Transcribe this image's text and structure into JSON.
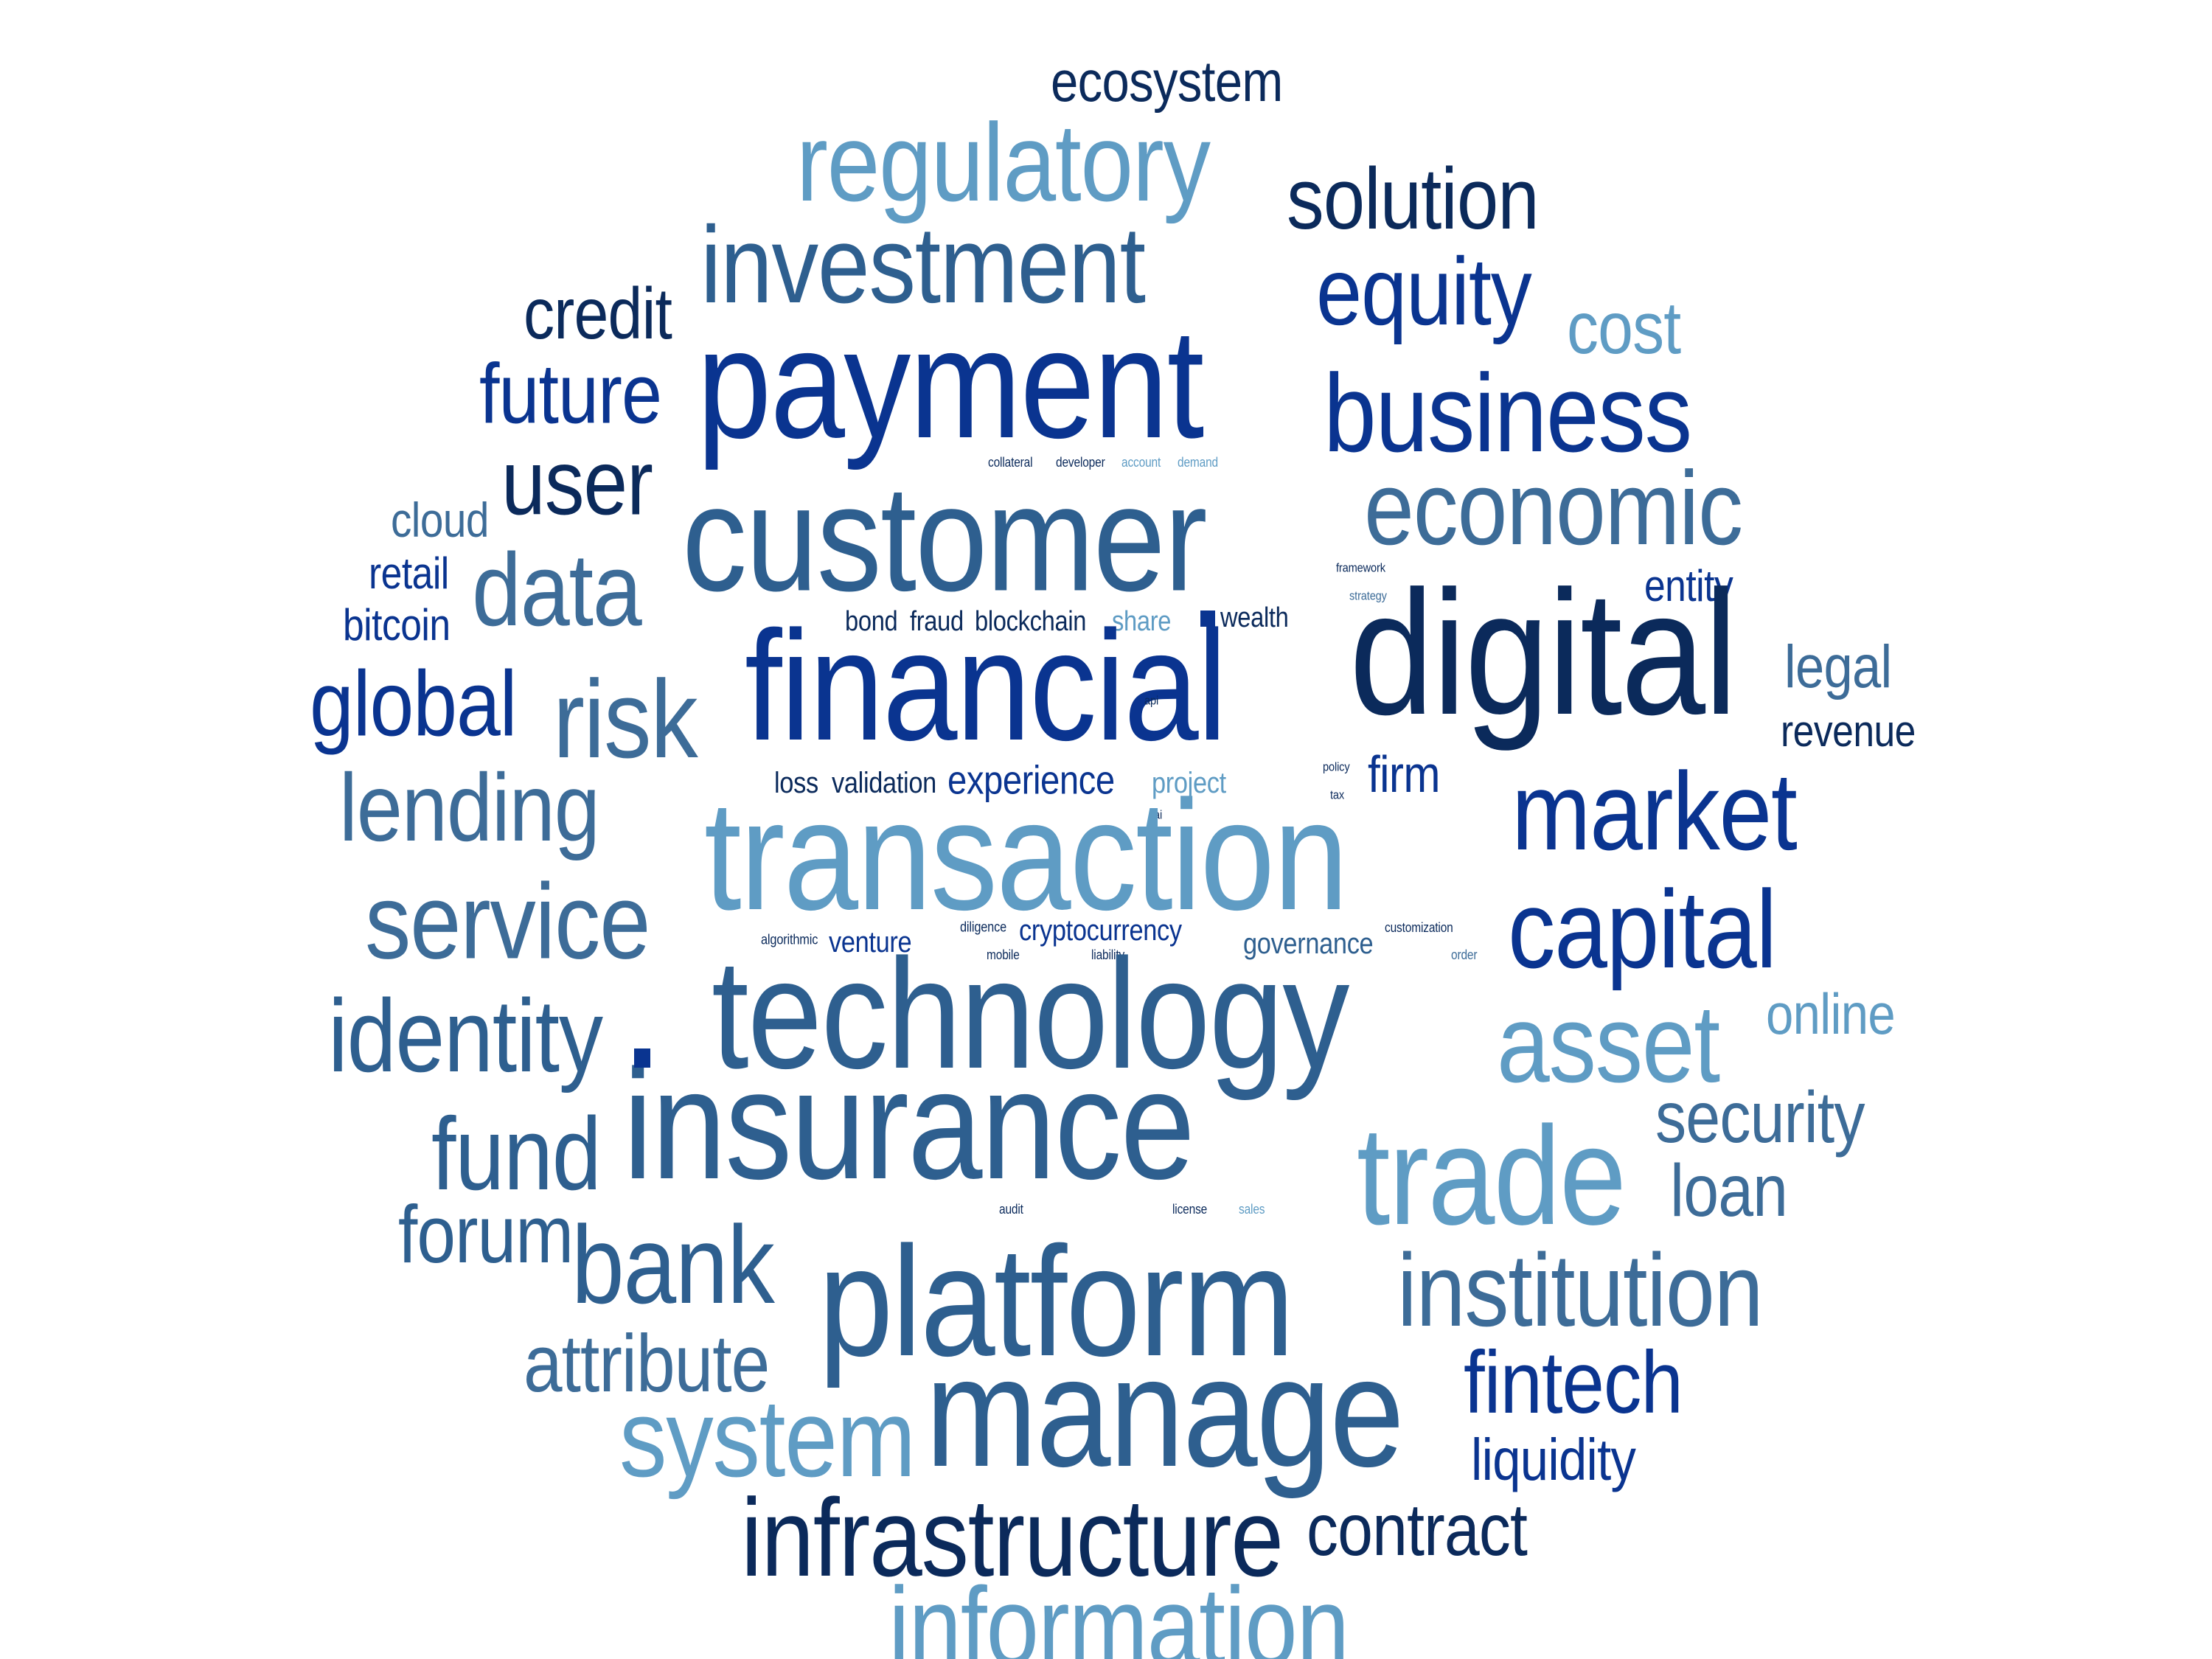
{
  "colors": {
    "background": "#ffffff",
    "palette": [
      "#0b2a5b",
      "#0a3490",
      "#2e5f8f",
      "#3d6c98",
      "#5f9cc4"
    ]
  },
  "words": [
    {
      "text": "ecosystem",
      "color": "#0b2a5b"
    },
    {
      "text": "regulatory",
      "color": "#5f9cc4"
    },
    {
      "text": "solution",
      "color": "#0b2a5b"
    },
    {
      "text": "investment",
      "color": "#2e5f8f"
    },
    {
      "text": "equity",
      "color": "#0a3490"
    },
    {
      "text": "credit",
      "color": "#0b2a5b"
    },
    {
      "text": "cost",
      "color": "#5f9cc4"
    },
    {
      "text": "payment",
      "color": "#0a3490"
    },
    {
      "text": "future",
      "color": "#0a3490"
    },
    {
      "text": "business",
      "color": "#0a3490"
    },
    {
      "text": "user",
      "color": "#0b2a5b"
    },
    {
      "text": "collateral",
      "color": "#0b2a5b"
    },
    {
      "text": "developer",
      "color": "#0b2a5b"
    },
    {
      "text": "account",
      "color": "#5f9cc4"
    },
    {
      "text": "demand",
      "color": "#5f9cc4"
    },
    {
      "text": "customer",
      "color": "#2e5f8f"
    },
    {
      "text": "economic",
      "color": "#3d6c98"
    },
    {
      "text": "cloud",
      "color": "#3d6c98"
    },
    {
      "text": "retail",
      "color": "#0a3490"
    },
    {
      "text": "data",
      "color": "#3d6c98"
    },
    {
      "text": "framework",
      "color": "#0b2a5b"
    },
    {
      "text": "strategy",
      "color": "#3d6c98"
    },
    {
      "text": "entity",
      "color": "#0a3490"
    },
    {
      "text": "bitcoin",
      "color": "#0a3490"
    },
    {
      "text": "bond",
      "color": "#0b2a5b"
    },
    {
      "text": "fraud",
      "color": "#0b2a5b"
    },
    {
      "text": "blockchain",
      "color": "#0b2a5b"
    },
    {
      "text": "share",
      "color": "#5f9cc4"
    },
    {
      "text": "wealth",
      "color": "#0b2a5b"
    },
    {
      "text": "digital",
      "color": "#0b2a5b"
    },
    {
      "text": "legal",
      "color": "#3d6c98"
    },
    {
      "text": "global",
      "color": "#0a3490"
    },
    {
      "text": "risk",
      "color": "#3d6c98"
    },
    {
      "text": "financial",
      "color": "#0a3490"
    },
    {
      "text": "api",
      "color": "#0b2a5b"
    },
    {
      "text": "revenue",
      "color": "#0b2a5b"
    },
    {
      "text": "lending",
      "color": "#3d6c98"
    },
    {
      "text": "loss",
      "color": "#0b2a5b"
    },
    {
      "text": "validation",
      "color": "#0b2a5b"
    },
    {
      "text": "experience",
      "color": "#0a3490"
    },
    {
      "text": "project",
      "color": "#5f9cc4"
    },
    {
      "text": "policy",
      "color": "#0b2a5b"
    },
    {
      "text": "tax",
      "color": "#0b2a5b"
    },
    {
      "text": "firm",
      "color": "#0a3490"
    },
    {
      "text": "market",
      "color": "#0a3490"
    },
    {
      "text": "ai",
      "color": "#0b2a5b"
    },
    {
      "text": "transaction",
      "color": "#5f9cc4"
    },
    {
      "text": "service",
      "color": "#3d6c98"
    },
    {
      "text": "capital",
      "color": "#0a3490"
    },
    {
      "text": "algorithmic",
      "color": "#0b2a5b"
    },
    {
      "text": "venture",
      "color": "#0a3490"
    },
    {
      "text": "diligence",
      "color": "#0b2a5b"
    },
    {
      "text": "cryptocurrency",
      "color": "#0a3490"
    },
    {
      "text": "governance",
      "color": "#2e5f8f"
    },
    {
      "text": "customization",
      "color": "#0b2a5b"
    },
    {
      "text": "mobile",
      "color": "#0b2a5b"
    },
    {
      "text": "liability",
      "color": "#0b2a5b"
    },
    {
      "text": "order",
      "color": "#3d6c98"
    },
    {
      "text": "technology",
      "color": "#2e5f8f"
    },
    {
      "text": "identity",
      "color": "#2e5f8f"
    },
    {
      "text": "online",
      "color": "#5f9cc4"
    },
    {
      "text": "asset",
      "color": "#5f9cc4"
    },
    {
      "text": "insurance",
      "color": "#2e5f8f"
    },
    {
      "text": "security",
      "color": "#3d6c98"
    },
    {
      "text": "fund",
      "color": "#2e5f8f"
    },
    {
      "text": "trade",
      "color": "#5f9cc4"
    },
    {
      "text": "loan",
      "color": "#3d6c98"
    },
    {
      "text": "audit",
      "color": "#0b2a5b"
    },
    {
      "text": "license",
      "color": "#0b2a5b"
    },
    {
      "text": "sales",
      "color": "#5f9cc4"
    },
    {
      "text": "forum",
      "color": "#2e5f8f"
    },
    {
      "text": "bank",
      "color": "#2e5f8f"
    },
    {
      "text": "platform",
      "color": "#2e5f8f"
    },
    {
      "text": "institution",
      "color": "#3d6c98"
    },
    {
      "text": "attribute",
      "color": "#3d6c98"
    },
    {
      "text": "fintech",
      "color": "#0a3490"
    },
    {
      "text": "manage",
      "color": "#2e5f8f"
    },
    {
      "text": "system",
      "color": "#5f9cc4"
    },
    {
      "text": "liquidity",
      "color": "#0a3490"
    },
    {
      "text": "infrastructure",
      "color": "#0b2a5b"
    },
    {
      "text": "contract",
      "color": "#0b2a5b"
    },
    {
      "text": "information",
      "color": "#5f9cc4"
    }
  ]
}
